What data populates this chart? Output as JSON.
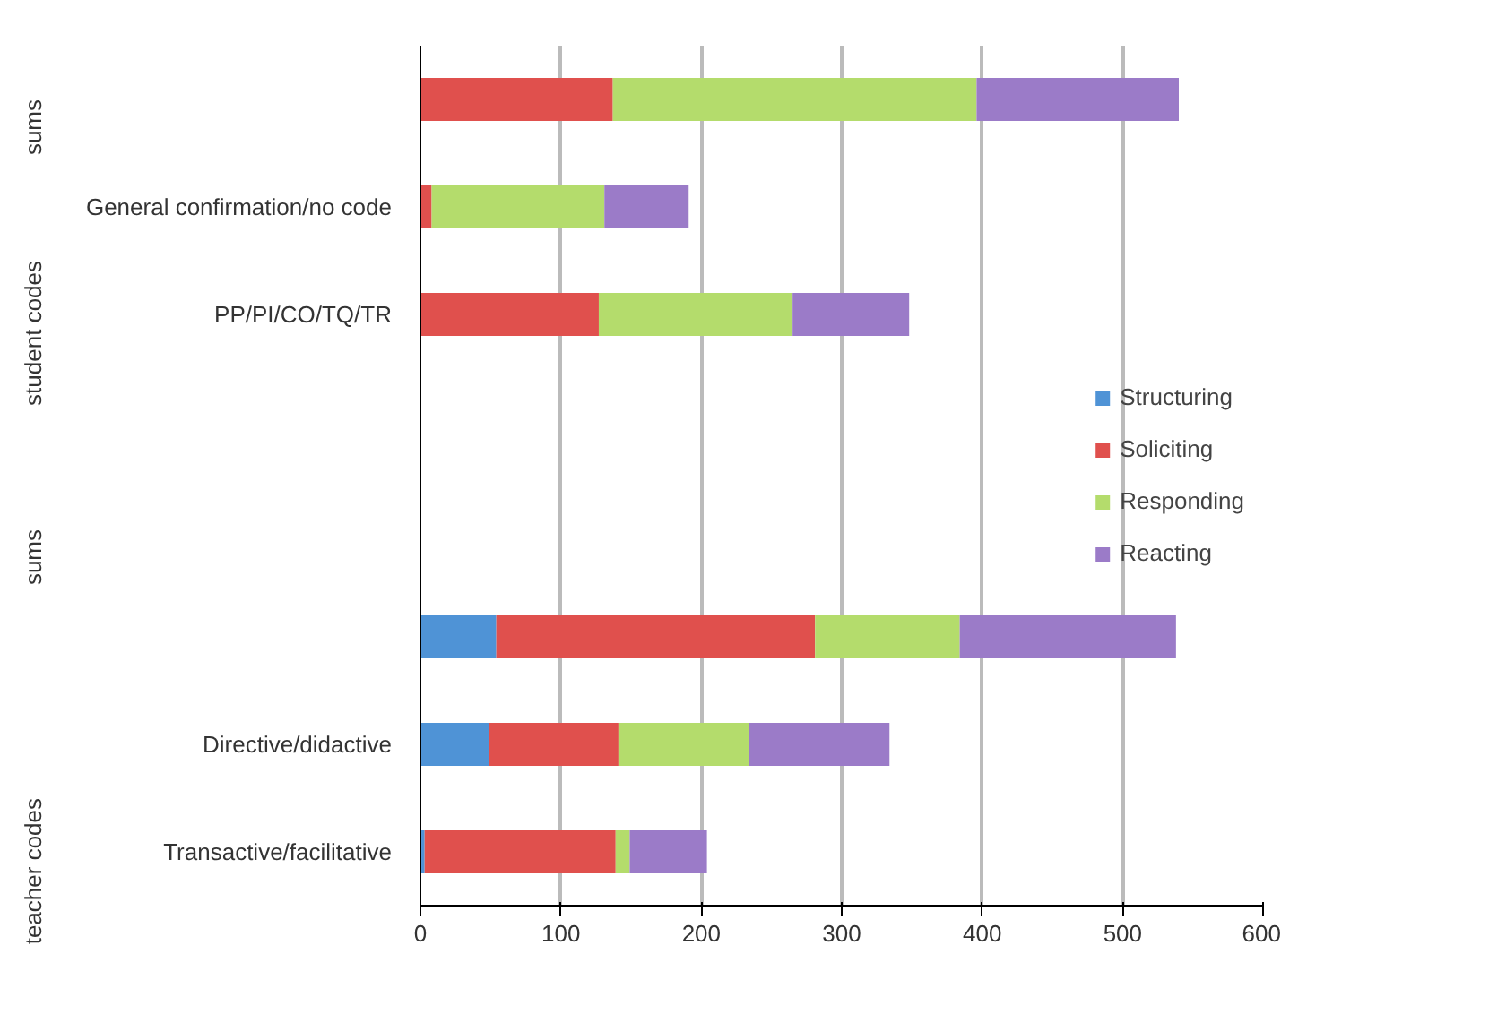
{
  "chart_data": {
    "type": "bar",
    "orientation": "horizontal",
    "stacked": true,
    "categories": [
      null,
      "General confirmation/no code",
      "PP/PI/CO/TQ/TR",
      null,
      null,
      null,
      "Directive/didactive",
      "Transactive/facilitative"
    ],
    "series": [
      {
        "name": "Structuring",
        "color": "#4f93d6",
        "values": [
          null,
          0,
          null,
          null,
          null,
          54,
          49,
          3
        ]
      },
      {
        "name": "Soliciting",
        "color": "#e0504d",
        "values": [
          137,
          8,
          127,
          null,
          null,
          227,
          92,
          136
        ]
      },
      {
        "name": "Responding",
        "color": "#b4dc6c",
        "values": [
          259,
          123,
          138,
          null,
          null,
          103,
          93,
          10
        ]
      },
      {
        "name": "Reacting",
        "color": "#9b7bc8",
        "values": [
          144,
          60,
          83,
          null,
          null,
          154,
          100,
          55
        ]
      }
    ],
    "xlim": [
      0,
      600
    ],
    "xticks": [
      0,
      100,
      200,
      300,
      400,
      500,
      600
    ],
    "grid": "x",
    "legend": "right",
    "annotations": [
      "sums",
      "student codes",
      "sums",
      "teacher codes"
    ]
  }
}
